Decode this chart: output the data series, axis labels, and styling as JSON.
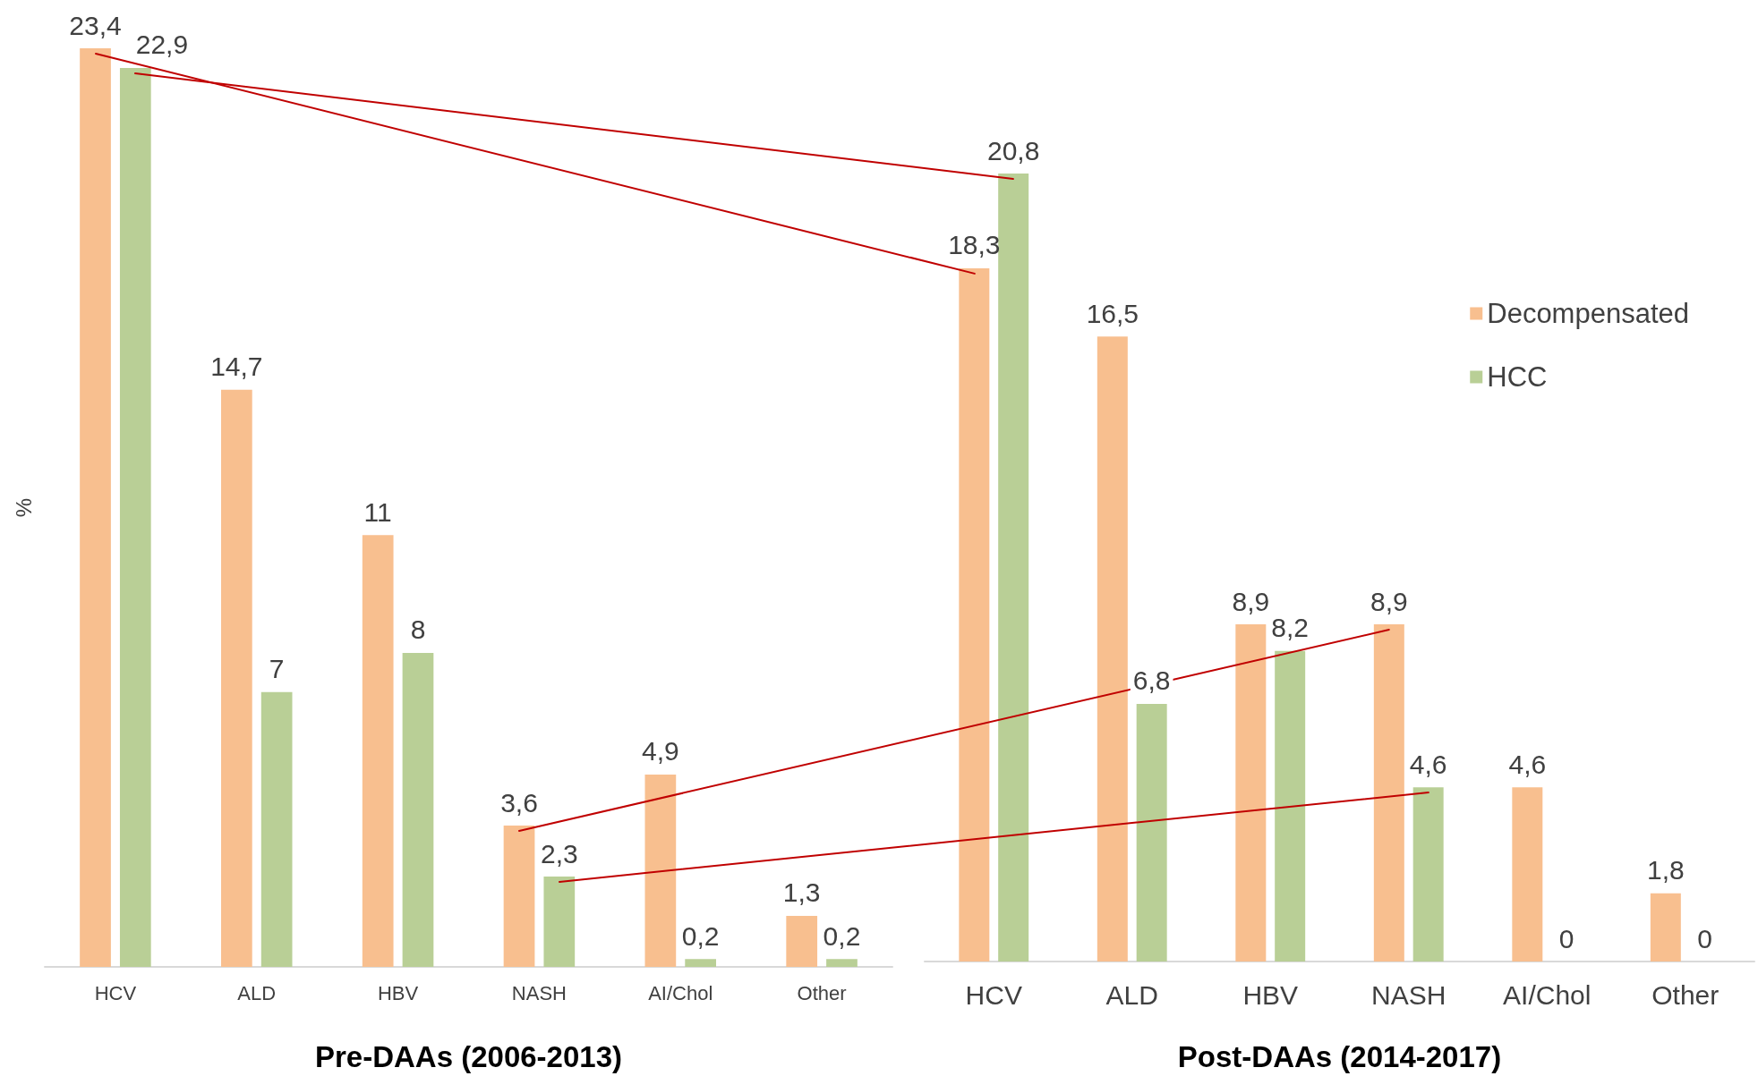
{
  "chart_data": [
    {
      "type": "bar",
      "xlabel": "Pre-DAAs (2006-2013)",
      "ylabel": "%",
      "categories": [
        "HCV",
        "ALD",
        "HBV",
        "NASH",
        "AI/Chol",
        "Other"
      ],
      "grid": false,
      "series": [
        {
          "color": "#f8bf8f",
          "values": [
            23.4,
            14.7,
            11,
            3.6,
            4.9,
            1.3
          ],
          "value_labels": [
            "23,4",
            "14,7",
            "11",
            "3,6",
            "4,9",
            "1,3"
          ]
        },
        {
          "color": "#b9cf96",
          "values": [
            22.9,
            7,
            8,
            2.3,
            0.2,
            0.2
          ],
          "value_labels": [
            "22,9",
            "7",
            "8",
            "2,3",
            "0,2",
            "0,2"
          ]
        }
      ]
    },
    {
      "type": "bar",
      "xlabel": "Post-DAAs (2014-2017)",
      "categories": [
        "HCV",
        "ALD",
        "HBV",
        "NASH",
        "AI/Chol",
        "Other"
      ],
      "grid": false,
      "legend": "top right",
      "series": [
        {
          "name": "Decompensated",
          "color": "#f8bf8f",
          "values": [
            18.3,
            16.5,
            8.9,
            8.9,
            4.6,
            1.8
          ],
          "value_labels": [
            "18,3",
            "16,5",
            "8,9",
            "8,9",
            "4,6",
            "1,8"
          ]
        },
        {
          "name": "HCC",
          "color": "#b9cf96",
          "values": [
            20.8,
            6.8,
            8.2,
            4.6,
            0,
            0
          ],
          "value_labels": [
            "20,8",
            "6,8",
            "8,2",
            "4,6",
            "0",
            "0"
          ]
        }
      ]
    }
  ]
}
